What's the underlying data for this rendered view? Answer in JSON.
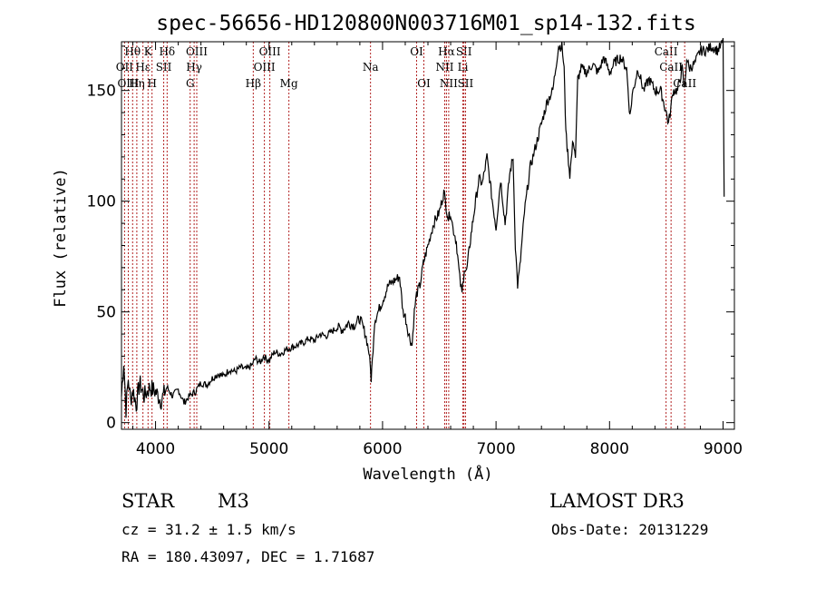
{
  "chart_data": {
    "type": "line",
    "title": "spec-56656-HD120800N003716M01_sp14-132.fits",
    "xlabel": "Wavelength (Å)",
    "ylabel": "Flux (relative)",
    "xlim": [
      3700,
      9100
    ],
    "ylim": [
      -3,
      172
    ],
    "xticks": [
      4000,
      5000,
      6000,
      7000,
      8000,
      9000
    ],
    "yticks": [
      0,
      50,
      100,
      150
    ],
    "series": [
      {
        "name": "spectrum",
        "x": [
          3700,
          3720,
          3740,
          3760,
          3780,
          3800,
          3830,
          3860,
          3900,
          3950,
          4000,
          4050,
          4100,
          4150,
          4200,
          4250,
          4300,
          4350,
          4400,
          4450,
          4500,
          4550,
          4600,
          4650,
          4700,
          4750,
          4800,
          4850,
          4880,
          4920,
          4950,
          5000,
          5050,
          5100,
          5150,
          5200,
          5250,
          5300,
          5350,
          5400,
          5450,
          5500,
          5550,
          5600,
          5650,
          5700,
          5750,
          5800,
          5850,
          5880,
          5900,
          5910,
          5930,
          5960,
          6000,
          6050,
          6100,
          6150,
          6180,
          6200,
          6230,
          6260,
          6280,
          6300,
          6330,
          6360,
          6400,
          6450,
          6500,
          6540,
          6560,
          6580,
          6600,
          6620,
          6650,
          6680,
          6700,
          6720,
          6740,
          6780,
          6820,
          6850,
          6880,
          6920,
          6960,
          7000,
          7040,
          7080,
          7120,
          7150,
          7170,
          7190,
          7210,
          7250,
          7300,
          7350,
          7400,
          7450,
          7500,
          7550,
          7580,
          7600,
          7610,
          7620,
          7650,
          7680,
          7700,
          7720,
          7750,
          7800,
          7850,
          7900,
          7950,
          8000,
          8050,
          8100,
          8150,
          8180,
          8200,
          8250,
          8300,
          8350,
          8400,
          8450,
          8500,
          8520,
          8540,
          8560,
          8600,
          8640,
          8660,
          8680,
          8700,
          8750,
          8800,
          8850,
          8900,
          8950,
          8980,
          9000,
          9010
        ],
        "values": [
          12,
          28,
          6,
          20,
          10,
          15,
          8,
          18,
          12,
          16,
          14,
          10,
          16,
          12,
          15,
          9,
          12,
          14,
          18,
          17,
          20,
          22,
          21,
          24,
          23,
          25,
          24,
          26,
          29,
          27,
          30,
          28,
          32,
          31,
          33,
          34,
          35,
          36,
          38,
          37,
          40,
          39,
          41,
          43,
          42,
          45,
          44,
          47,
          40,
          32,
          20,
          28,
          46,
          50,
          55,
          62,
          64,
          66,
          50,
          48,
          40,
          35,
          50,
          58,
          62,
          72,
          80,
          90,
          95,
          104,
          98,
          92,
          95,
          88,
          82,
          65,
          58,
          70,
          68,
          85,
          100,
          110,
          108,
          120,
          103,
          88,
          110,
          90,
          112,
          120,
          80,
          62,
          70,
          95,
          115,
          125,
          135,
          145,
          150,
          170,
          170,
          160,
          140,
          128,
          112,
          128,
          120,
          155,
          160,
          158,
          162,
          158,
          165,
          158,
          163,
          165,
          160,
          138,
          148,
          160,
          150,
          155,
          150,
          150,
          140,
          135,
          142,
          150,
          150,
          160,
          150,
          165,
          160,
          162,
          168,
          168,
          170,
          168,
          170,
          172,
          102
        ]
      }
    ],
    "lines": [
      {
        "label": "Hθ",
        "wave": 3798,
        "row": 0
      },
      {
        "label": "OII",
        "wave": 3727,
        "row": 1
      },
      {
        "label": "OIII",
        "wave": 3760,
        "row": 2
      },
      {
        "label": "Hε",
        "wave": 3889,
        "row": 1
      },
      {
        "label": "Hη",
        "wave": 3835,
        "row": 2
      },
      {
        "label": "K",
        "wave": 3934,
        "row": 0
      },
      {
        "label": "H",
        "wave": 3969,
        "row": 2
      },
      {
        "label": "SII",
        "wave": 4072,
        "row": 1
      },
      {
        "label": "Hδ",
        "wave": 4102,
        "row": 0
      },
      {
        "label": "OIII",
        "wave": 4363,
        "row": 0
      },
      {
        "label": "Hγ",
        "wave": 4340,
        "row": 1
      },
      {
        "label": "G",
        "wave": 4305,
        "row": 2
      },
      {
        "label": "Hβ",
        "wave": 4861,
        "row": 2
      },
      {
        "label": "OIII",
        "wave": 4959,
        "row": 1
      },
      {
        "label": "OIII",
        "wave": 5007,
        "row": 0
      },
      {
        "label": "Mg",
        "wave": 5175,
        "row": 2
      },
      {
        "label": "Na",
        "wave": 5894,
        "row": 1
      },
      {
        "label": "OI",
        "wave": 6300,
        "row": 0
      },
      {
        "label": "OI",
        "wave": 6364,
        "row": 2
      },
      {
        "label": "NII",
        "wave": 6548,
        "row": 1
      },
      {
        "label": "Hα",
        "wave": 6563,
        "row": 0
      },
      {
        "label": "NII",
        "wave": 6583,
        "row": 2
      },
      {
        "label": "Li",
        "wave": 6708,
        "row": 1
      },
      {
        "label": "SII",
        "wave": 6717,
        "row": 0
      },
      {
        "label": "SII",
        "wave": 6731,
        "row": 2
      },
      {
        "label": "CaII",
        "wave": 8498,
        "row": 0
      },
      {
        "label": "CaII",
        "wave": 8542,
        "row": 1
      },
      {
        "label": "CaII",
        "wave": 8662,
        "row": 2
      }
    ]
  },
  "info": {
    "class": "STAR",
    "subclass": "M3",
    "survey": "LAMOST DR3",
    "cz": "cz = 31.2 ± 1.5 km/s",
    "obs_date": "Obs-Date: 20131229",
    "coords": "RA = 180.43097, DEC =    1.71687"
  },
  "colors": {
    "axis": "#000000",
    "spectrum": "#000000",
    "lines": "#b22222"
  }
}
